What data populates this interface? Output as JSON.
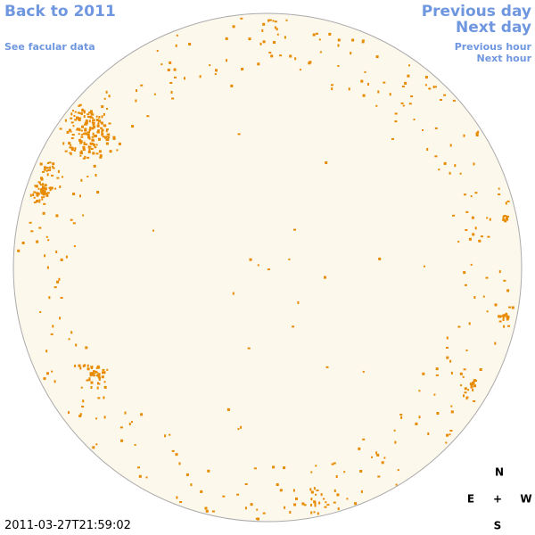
{
  "header": {
    "back_link": "Back to 2011",
    "facular_link": "See facular data",
    "previous_day": "Previous day",
    "next_day": "Next day",
    "previous_hour": "Previous hour",
    "next_hour": "Next hour"
  },
  "compass": {
    "north": "N",
    "east": "E",
    "center": "+",
    "west": "W",
    "south": "S"
  },
  "timestamp": "2011-03-27T21:59:02"
}
